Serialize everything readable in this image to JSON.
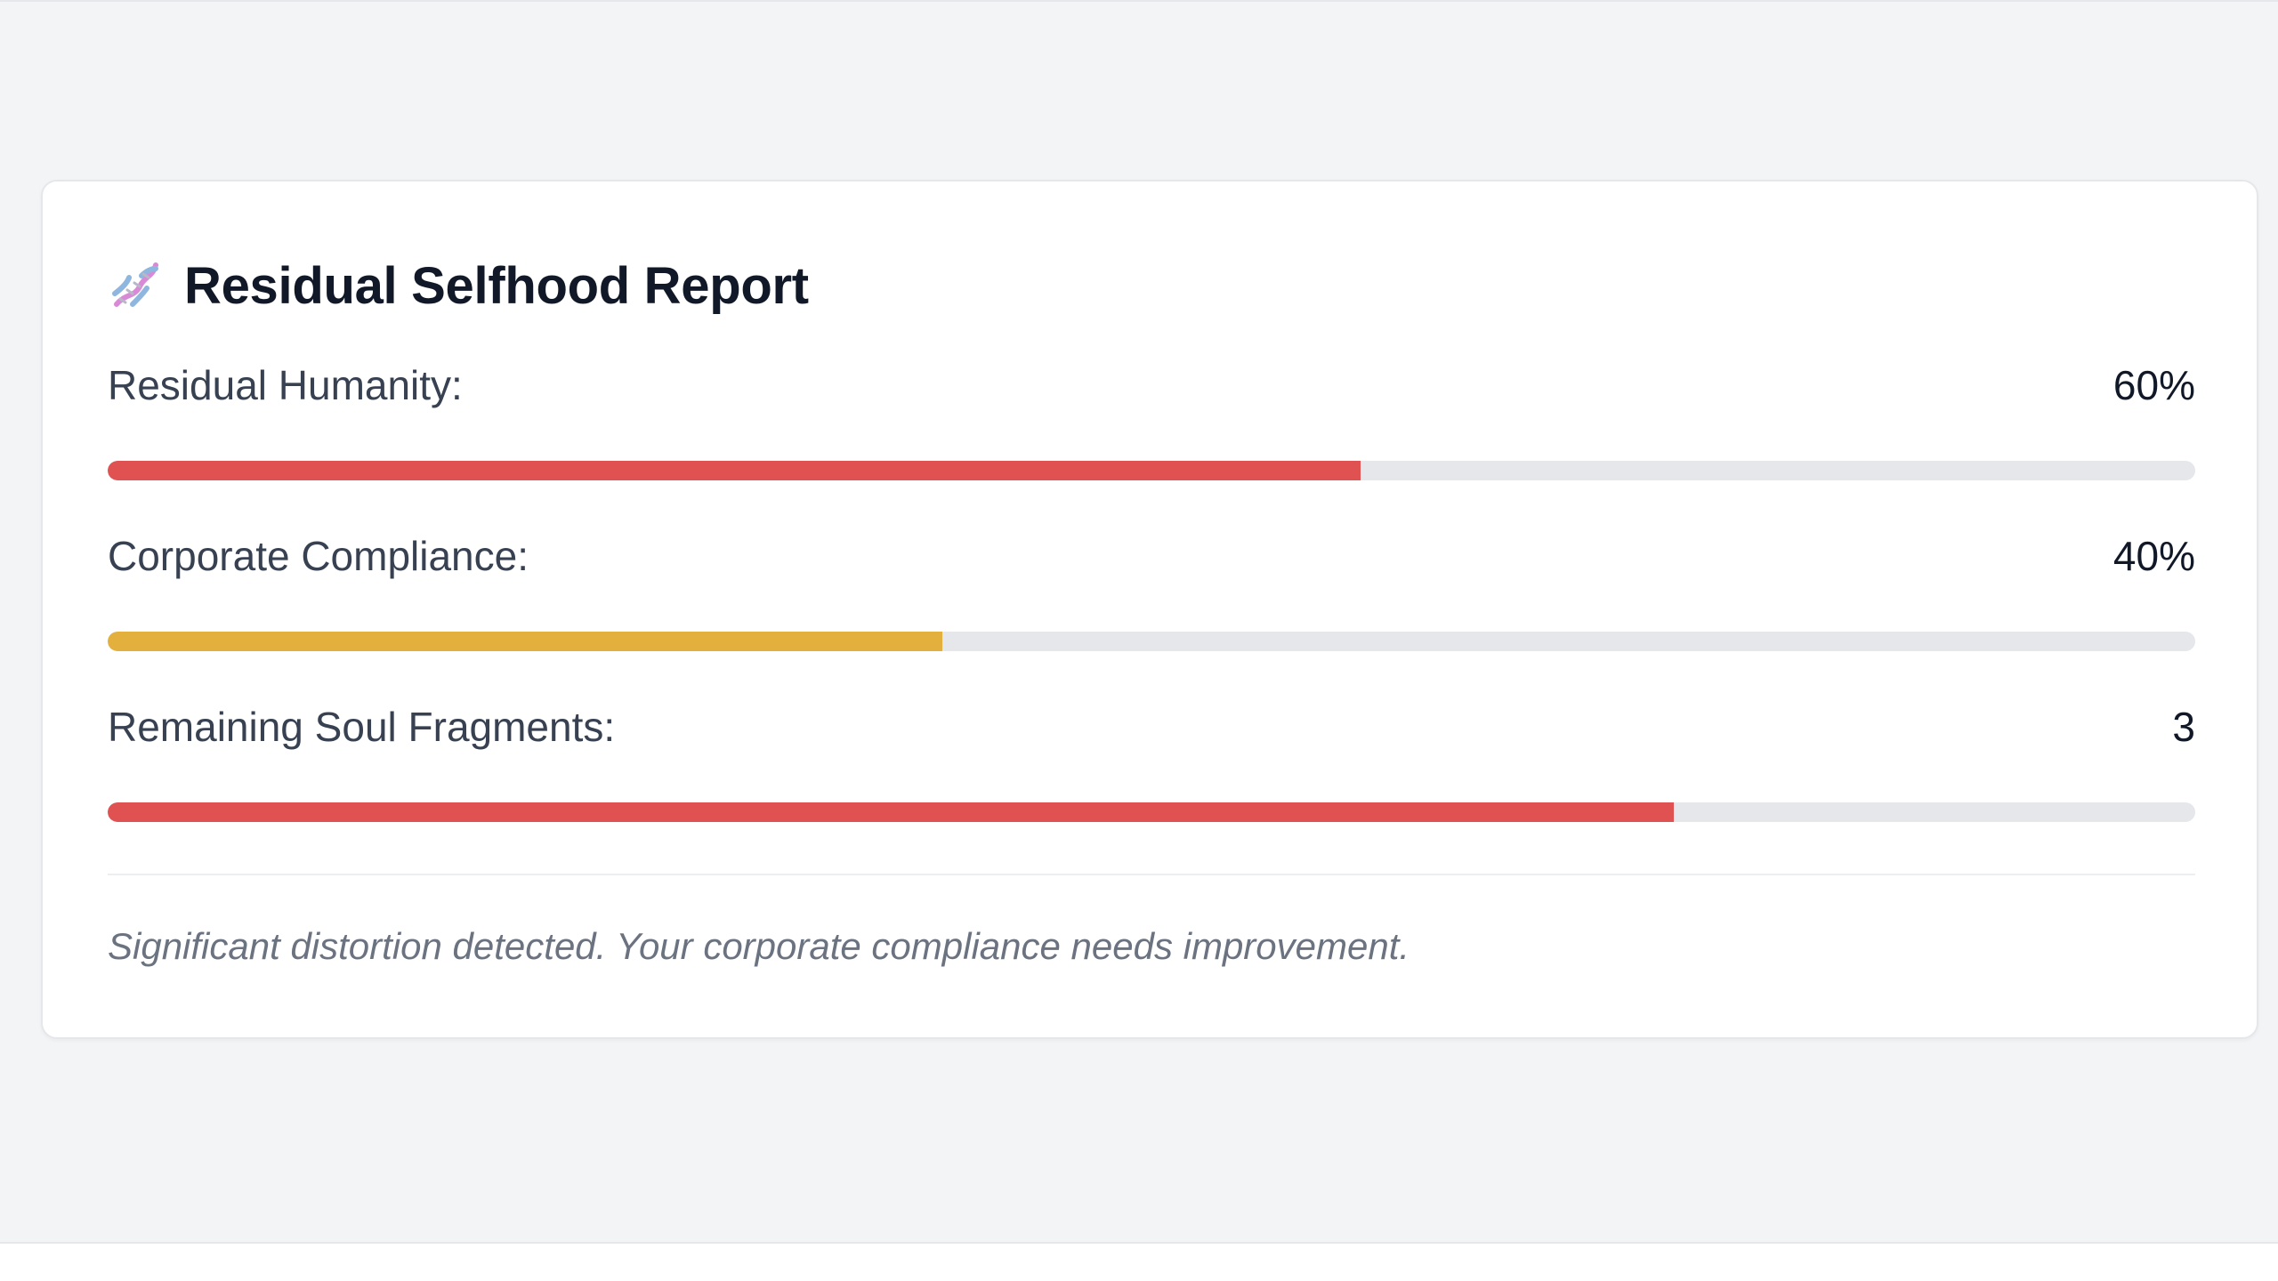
{
  "card": {
    "title": "Residual Selfhood Report",
    "title_icon": "dna-icon"
  },
  "metrics": [
    {
      "label": "Residual Humanity:",
      "value": "60%",
      "level": 0.6,
      "color": "#e05252"
    },
    {
      "label": "Corporate Compliance:",
      "value": "40%",
      "level": 0.4,
      "color": "#e3b03e"
    },
    {
      "label": "Remaining Soul Fragments:",
      "value": "3",
      "level": 0.75,
      "color": "#e05252"
    }
  ],
  "footer": {
    "note": "Significant distortion detected. Your corporate compliance needs improvement."
  }
}
